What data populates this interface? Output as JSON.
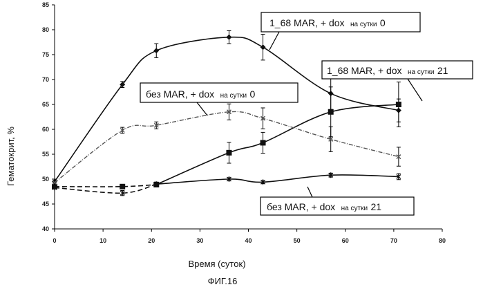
{
  "chart_data": {
    "type": "line",
    "xlabel": "Время (суток)",
    "ylabel": "Гематокрит, %",
    "caption": "ФИГ.16",
    "xlim": [
      0,
      80
    ],
    "ylim": [
      40,
      85
    ],
    "xticks": [
      "0",
      "10",
      "20",
      "30",
      "40",
      "50",
      "60",
      "70",
      "80"
    ],
    "yticks": [
      "40",
      "45",
      "50",
      "55",
      "60",
      "65",
      "70",
      "75",
      "80",
      "85"
    ],
    "grid": false,
    "series": [
      {
        "name": "1_68 MAR, + dox на сутки 0",
        "label_main": "1_68 MAR, + dox",
        "label_small": "на сутки",
        "label_end": "0",
        "marker": "diamond",
        "style": "solid",
        "color": "#111111",
        "x": [
          0,
          14,
          21,
          36,
          43,
          57,
          71
        ],
        "y": [
          49.5,
          69,
          75.8,
          78.5,
          76.5,
          67.2,
          63.8
        ],
        "err": [
          0.5,
          0.6,
          1.4,
          1.3,
          2.6,
          3.2,
          2.3
        ]
      },
      {
        "name": "1_68 MAR, + dox на сутки 21",
        "label_main": "1_68 MAR, + dox",
        "label_small": "на сутки",
        "label_end": "21",
        "marker": "square",
        "style": "solid",
        "color": "#111111",
        "x": [
          0,
          14,
          21,
          36,
          43,
          57,
          71
        ],
        "y": [
          48.5,
          48.5,
          48.9,
          55.3,
          57.3,
          63.5,
          65
        ],
        "err": [
          0.4,
          0.4,
          0.5,
          2.1,
          2.1,
          5,
          4.5
        ]
      },
      {
        "name": "без MAR, + dox на сутки 0",
        "label_main": "без MAR, + dox",
        "label_small": "на сутки",
        "label_end": "0",
        "marker": "cross",
        "style": "dotted",
        "color": "#555555",
        "x": [
          0,
          14,
          21,
          36,
          43,
          57,
          71
        ],
        "y": [
          49.3,
          59.8,
          60.8,
          63.5,
          62.2,
          58,
          54.5
        ],
        "err": [
          0.4,
          0.6,
          0.7,
          1.6,
          2.1,
          2.5,
          1.9
        ]
      },
      {
        "name": "без MAR, + dox на сутки 21",
        "label_main": "без MAR, + dox",
        "label_small": "на сутки",
        "label_end": "21",
        "marker": "asterisk",
        "style": "solid",
        "color": "#111111",
        "x": [
          0,
          14,
          21,
          36,
          43,
          57,
          71
        ],
        "y": [
          48.3,
          47.2,
          49,
          50,
          49.4,
          50.8,
          50.5
        ],
        "err": [
          0.3,
          0.5,
          0.4,
          0.3,
          0.3,
          0.4,
          0.6
        ]
      }
    ]
  }
}
